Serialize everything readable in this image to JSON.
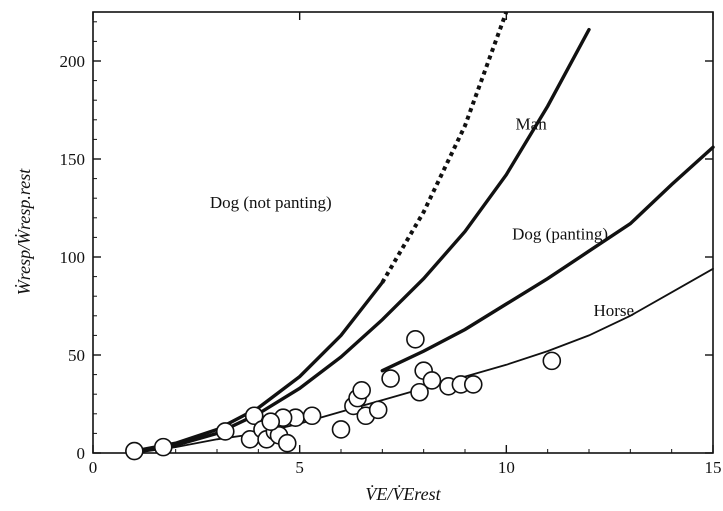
{
  "chart_data": {
    "type": "line",
    "title": "",
    "xlabel": "V̇E/V̇Erest",
    "ylabel": "Ẇresp/Ẇresp.rest",
    "xlim": [
      0,
      15
    ],
    "ylim": [
      0,
      225
    ],
    "x_ticks": [
      0,
      5,
      10,
      15
    ],
    "y_ticks": [
      0,
      50,
      100,
      150,
      200
    ],
    "x_tick_labels": [
      "0",
      "5",
      "10",
      "15"
    ],
    "y_tick_labels": [
      "0",
      "50",
      "100",
      "150",
      "200"
    ],
    "grid": false,
    "legend": "none",
    "series": [
      {
        "name": "Dog (not panting)",
        "style": "solid-then-dotted",
        "solid_x": [
          1,
          2,
          3,
          4,
          5,
          6,
          7
        ],
        "solid_y": [
          1,
          5,
          12,
          23,
          39,
          60,
          87
        ],
        "dotted_x": [
          7,
          8,
          9,
          10
        ],
        "dotted_y": [
          87,
          123,
          167,
          225
        ]
      },
      {
        "name": "Man",
        "style": "solid",
        "x": [
          1,
          2,
          3,
          4,
          5,
          6,
          7,
          8,
          9,
          10,
          11,
          12
        ],
        "y": [
          1,
          4,
          10,
          20,
          33,
          49,
          68,
          89,
          113,
          142,
          177,
          216
        ]
      },
      {
        "name": "Dog (panting)",
        "style": "solid",
        "x": [
          7,
          8,
          9,
          10,
          11,
          12,
          13,
          14,
          15
        ],
        "y": [
          42,
          52,
          63,
          76,
          89,
          103,
          117,
          137,
          156
        ]
      },
      {
        "name": "Horse",
        "style": "solid-thin",
        "x": [
          1,
          2,
          3,
          4,
          5,
          6,
          7,
          8,
          9,
          10,
          11,
          12,
          13,
          14,
          15
        ],
        "y": [
          0,
          3,
          7,
          10,
          15,
          21,
          27,
          33,
          39,
          45,
          52,
          60,
          70,
          82,
          94
        ]
      },
      {
        "name": "observations",
        "style": "open-circles",
        "x": [
          1.0,
          1.7,
          3.2,
          3.9,
          3.8,
          4.1,
          4.2,
          4.4,
          4.5,
          4.7,
          4.9,
          4.6,
          4.3,
          5.3,
          6.0,
          6.3,
          6.4,
          6.5,
          6.6,
          6.9,
          7.2,
          7.8,
          7.9,
          8.0,
          8.2,
          8.6,
          8.9,
          9.2,
          11.1
        ],
        "y": [
          1,
          3,
          11,
          19,
          7,
          12,
          7,
          11,
          9,
          5,
          18,
          18,
          16,
          19,
          12,
          24,
          28,
          32,
          19,
          22,
          38,
          58,
          31,
          42,
          37,
          34,
          35,
          35,
          47
        ]
      }
    ]
  }
}
